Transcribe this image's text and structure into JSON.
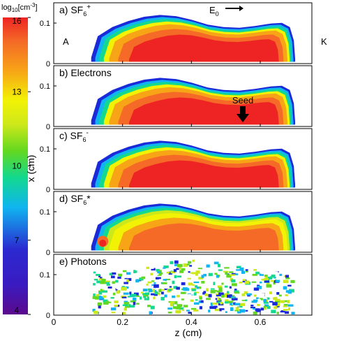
{
  "colorbar": {
    "title_base": "log",
    "title_sub": "10",
    "title_unit": "[cm",
    "title_exp": "-3",
    "title_close": "]",
    "ticks": [
      "16",
      "13",
      "10",
      "7",
      "4"
    ],
    "range": [
      4,
      16
    ],
    "colors": [
      "#5b0a8c",
      "#2a2ad0",
      "#10b4f0",
      "#12d890",
      "#62d820",
      "#cde81a",
      "#f2f205",
      "#f7a417",
      "#f46a26",
      "#ee2424"
    ]
  },
  "axes": {
    "xlabel": "z (cm)",
    "ylabel": "x (cm)",
    "xticks": [
      "0",
      "0.2",
      "0.4",
      "0.6"
    ],
    "yticks": [
      "0",
      "0.1"
    ],
    "xlim": [
      0,
      0.75
    ],
    "ylim": [
      0,
      0.15
    ]
  },
  "panels": [
    {
      "label": "a) SF",
      "sub": "6",
      "sup": "+",
      "tail": "",
      "peak": 15.6
    },
    {
      "label": "b) Electrons",
      "sub": "",
      "sup": "",
      "tail": "",
      "peak": 15.4
    },
    {
      "label": "c) SF",
      "sub": "6",
      "sup": "-",
      "tail": "",
      "peak": 15.6
    },
    {
      "label": "d) SF",
      "sub": "6",
      "sup": "",
      "tail": "*",
      "peak": 13.2
    },
    {
      "label": "e) Photons",
      "sub": "",
      "sup": "",
      "tail": "",
      "peak": 10.0
    }
  ],
  "annotations": {
    "anode": "A",
    "cathode": "K",
    "field_label": "E",
    "field_sub": "0",
    "seed_label": "Seed"
  },
  "chart_data": {
    "type": "heatmap",
    "title": "",
    "xlabel": "z (cm)",
    "ylabel": "x (cm)",
    "xlim": [
      0,
      0.75
    ],
    "ylim": [
      0,
      0.15
    ],
    "color_scale": "log10[cm-3]",
    "clim": [
      4,
      16
    ],
    "series": [
      {
        "name": "a) SF6+",
        "extent_z": [
          0.11,
          0.68
        ],
        "top_x_at_z": [
          [
            0.12,
            0.02
          ],
          [
            0.2,
            0.09
          ],
          [
            0.3,
            0.115
          ],
          [
            0.4,
            0.11
          ],
          [
            0.5,
            0.095
          ],
          [
            0.6,
            0.095
          ],
          [
            0.66,
            0.1
          ]
        ],
        "peak_log10": 15.6
      },
      {
        "name": "b) Electrons",
        "extent_z": [
          0.11,
          0.68
        ],
        "top_x_at_z": [
          [
            0.12,
            0.02
          ],
          [
            0.2,
            0.09
          ],
          [
            0.3,
            0.115
          ],
          [
            0.4,
            0.11
          ],
          [
            0.5,
            0.095
          ],
          [
            0.6,
            0.095
          ],
          [
            0.66,
            0.1
          ]
        ],
        "peak_log10": 15.4
      },
      {
        "name": "c) SF6-",
        "extent_z": [
          0.11,
          0.68
        ],
        "top_x_at_z": [
          [
            0.12,
            0.02
          ],
          [
            0.2,
            0.09
          ],
          [
            0.3,
            0.115
          ],
          [
            0.4,
            0.11
          ],
          [
            0.5,
            0.095
          ],
          [
            0.6,
            0.095
          ],
          [
            0.66,
            0.1
          ]
        ],
        "peak_log10": 15.6
      },
      {
        "name": "d) SF6*",
        "extent_z": [
          0.11,
          0.68
        ],
        "top_x_at_z": [
          [
            0.12,
            0.02
          ],
          [
            0.2,
            0.09
          ],
          [
            0.3,
            0.115
          ],
          [
            0.4,
            0.11
          ],
          [
            0.5,
            0.095
          ],
          [
            0.6,
            0.095
          ],
          [
            0.66,
            0.1
          ]
        ],
        "peak_log10": 13.2
      },
      {
        "name": "e) Photons",
        "extent_z": [
          0.11,
          0.68
        ],
        "top_x_at_z": [
          [
            0.15,
            0.1
          ],
          [
            0.3,
            0.11
          ],
          [
            0.45,
            0.1
          ],
          [
            0.6,
            0.095
          ]
        ],
        "peak_log10": 10.0
      }
    ],
    "annotations": [
      {
        "text": "A",
        "at_z": 0.02
      },
      {
        "text": "K",
        "at_z": 0.72
      },
      {
        "text": "E0",
        "direction": "+z"
      },
      {
        "text": "Seed",
        "at_z": 0.5
      }
    ]
  }
}
